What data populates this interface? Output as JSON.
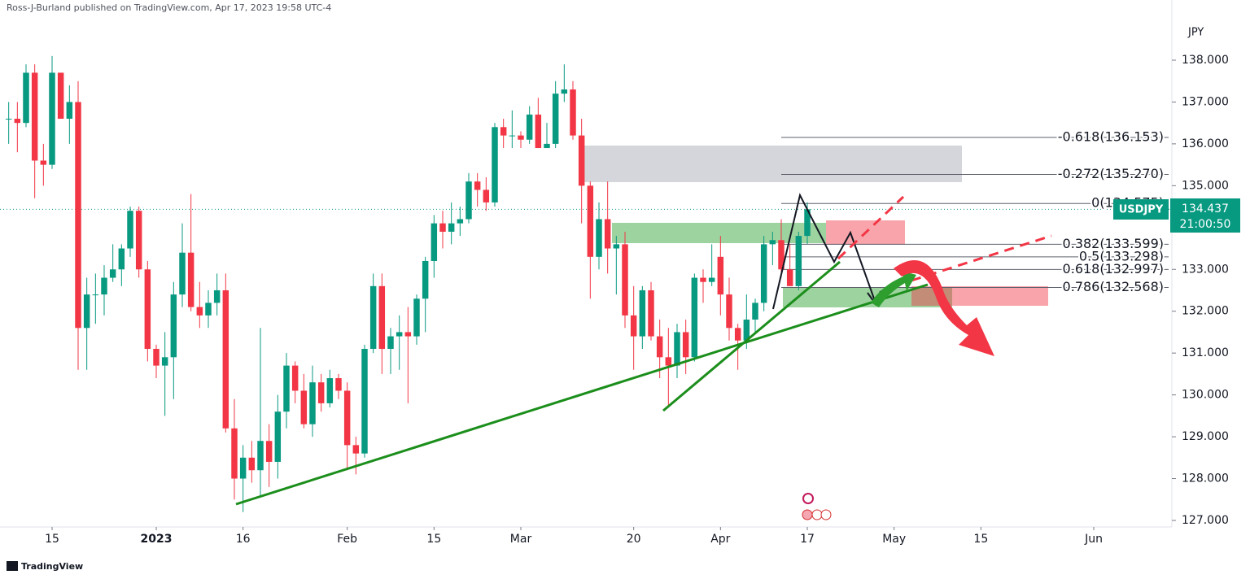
{
  "header": {
    "published": "Ross-J-Burland published on TradingView.com, Apr 17, 2023 19:58 UTC-4"
  },
  "footer": {
    "brand": "TradingView"
  },
  "chart_data": {
    "type": "candlestick",
    "symbol": "USDJPY",
    "axis_label": "JPY",
    "up_color": "#089981",
    "down_color": "#f23645",
    "ylim": [
      126.844,
      139.438
    ],
    "yticks": [
      {
        "value": 127,
        "label": "127.000"
      },
      {
        "value": 128,
        "label": "128.000"
      },
      {
        "value": 129,
        "label": "129.000"
      },
      {
        "value": 130,
        "label": "130.000"
      },
      {
        "value": 131,
        "label": "131.000"
      },
      {
        "value": 132,
        "label": "132.000"
      },
      {
        "value": 133,
        "label": "133.000"
      },
      {
        "value": 134,
        "label": "134.000"
      },
      {
        "value": 135,
        "label": "135.000"
      },
      {
        "value": 136,
        "label": "136.000"
      },
      {
        "value": 137,
        "label": "137.000"
      },
      {
        "value": 138,
        "label": "138.000"
      }
    ],
    "xlim": [
      "2022-12-07",
      "2023-06-14"
    ],
    "xticks": [
      {
        "value": "2022-12-15",
        "label": "15"
      },
      {
        "value": "2023-01-02",
        "label": "2023"
      },
      {
        "value": "2023-01-16",
        "label": "16"
      },
      {
        "value": "2023-02-01",
        "label": "Feb"
      },
      {
        "value": "2023-02-15",
        "label": "15"
      },
      {
        "value": "2023-03-01",
        "label": "Mar"
      },
      {
        "value": "2023-03-20",
        "label": "20"
      },
      {
        "value": "2023-04-03",
        "label": "Apr"
      },
      {
        "value": "2023-04-17",
        "label": "17"
      },
      {
        "value": "2023-05-01",
        "label": "May"
      },
      {
        "value": "2023-05-15",
        "label": "15"
      },
      {
        "value": "2023-06-01",
        "label": "Jun"
      }
    ],
    "last_price": 134.437,
    "countdown": "21:00:50",
    "fib_levels": [
      {
        "value": 136.153,
        "label": "-0.618(136.153)"
      },
      {
        "value": 135.27,
        "label": "-0.272(135.270)"
      },
      {
        "value": 134.575,
        "label": "0(134.575)"
      },
      {
        "value": 133.599,
        "label": "0.382(133.599)"
      },
      {
        "value": 133.298,
        "label": "0.5(133.298)"
      },
      {
        "value": 132.997,
        "label": "0.618(132.997)"
      },
      {
        "value": 132.568,
        "label": "0.786(132.568)"
      }
    ],
    "x": [
      "2022-12-08",
      "2022-12-09",
      "2022-12-12",
      "2022-12-13",
      "2022-12-14",
      "2022-12-15",
      "2022-12-16",
      "2022-12-19",
      "2022-12-20",
      "2022-12-21",
      "2022-12-22",
      "2022-12-23",
      "2022-12-26",
      "2022-12-27",
      "2022-12-28",
      "2022-12-29",
      "2022-12-30",
      "2023-01-02",
      "2023-01-03",
      "2023-01-04",
      "2023-01-05",
      "2023-01-06",
      "2023-01-09",
      "2023-01-10",
      "2023-01-11",
      "2023-01-12",
      "2023-01-13",
      "2023-01-16",
      "2023-01-17",
      "2023-01-18",
      "2023-01-19",
      "2023-01-20",
      "2023-01-23",
      "2023-01-24",
      "2023-01-25",
      "2023-01-26",
      "2023-01-27",
      "2023-01-30",
      "2023-01-31",
      "2023-02-01",
      "2023-02-02",
      "2023-02-03",
      "2023-02-06",
      "2023-02-07",
      "2023-02-08",
      "2023-02-09",
      "2023-02-10",
      "2023-02-13",
      "2023-02-14",
      "2023-02-15",
      "2023-02-16",
      "2023-02-17",
      "2023-02-20",
      "2023-02-21",
      "2023-02-22",
      "2023-02-23",
      "2023-02-24",
      "2023-02-27",
      "2023-02-28",
      "2023-03-01",
      "2023-03-02",
      "2023-03-03",
      "2023-03-06",
      "2023-03-07",
      "2023-03-08",
      "2023-03-09",
      "2023-03-10",
      "2023-03-13",
      "2023-03-14",
      "2023-03-15",
      "2023-03-16",
      "2023-03-17",
      "2023-03-20",
      "2023-03-21",
      "2023-03-22",
      "2023-03-23",
      "2023-03-24",
      "2023-03-27",
      "2023-03-28",
      "2023-03-29",
      "2023-03-30",
      "2023-03-31",
      "2023-04-03",
      "2023-04-04",
      "2023-04-05",
      "2023-04-06",
      "2023-04-07",
      "2023-04-10",
      "2023-04-11",
      "2023-04-12",
      "2023-04-13",
      "2023-04-14",
      "2023-04-17"
    ],
    "values": [
      [
        136.6,
        137.0,
        136.0,
        136.6
      ],
      [
        136.6,
        137.0,
        135.8,
        136.5
      ],
      [
        136.5,
        137.9,
        136.4,
        137.7
      ],
      [
        137.7,
        137.9,
        134.7,
        135.6
      ],
      [
        135.6,
        136.0,
        135.0,
        135.5
      ],
      [
        135.5,
        138.1,
        135.4,
        137.7
      ],
      [
        137.7,
        137.7,
        136.6,
        136.6
      ],
      [
        136.6,
        137.4,
        136.0,
        137.0
      ],
      [
        137.0,
        137.5,
        130.6,
        131.6
      ],
      [
        131.6,
        132.8,
        130.6,
        132.4
      ],
      [
        132.4,
        132.9,
        131.7,
        132.4
      ],
      [
        132.4,
        133.1,
        131.9,
        132.8
      ],
      [
        132.8,
        133.6,
        132.7,
        133.0
      ],
      [
        133.0,
        133.6,
        132.6,
        133.5
      ],
      [
        133.5,
        134.5,
        133.3,
        134.4
      ],
      [
        134.4,
        134.5,
        132.8,
        133.0
      ],
      [
        133.0,
        133.2,
        130.8,
        131.1
      ],
      [
        131.1,
        131.2,
        130.4,
        130.7
      ],
      [
        130.7,
        131.5,
        129.5,
        130.9
      ],
      [
        130.9,
        132.7,
        129.9,
        132.4
      ],
      [
        132.4,
        134.1,
        132.1,
        133.4
      ],
      [
        133.4,
        134.8,
        132.0,
        132.1
      ],
      [
        132.1,
        132.7,
        131.6,
        131.9
      ],
      [
        131.9,
        132.5,
        131.6,
        132.2
      ],
      [
        132.2,
        132.9,
        131.9,
        132.5
      ],
      [
        132.5,
        132.9,
        129.1,
        129.2
      ],
      [
        129.2,
        129.9,
        127.5,
        128.0
      ],
      [
        128.0,
        128.8,
        127.2,
        128.5
      ],
      [
        128.5,
        128.9,
        127.9,
        128.2
      ],
      [
        128.2,
        131.6,
        127.6,
        128.9
      ],
      [
        128.9,
        129.3,
        127.8,
        128.4
      ],
      [
        128.4,
        130.0,
        128.0,
        129.6
      ],
      [
        129.6,
        131.0,
        129.2,
        130.7
      ],
      [
        130.7,
        130.8,
        129.8,
        130.1
      ],
      [
        130.1,
        130.5,
        129.2,
        129.3
      ],
      [
        129.3,
        130.7,
        129.0,
        130.3
      ],
      [
        130.3,
        130.5,
        129.6,
        129.8
      ],
      [
        129.8,
        130.6,
        129.7,
        130.4
      ],
      [
        130.4,
        130.5,
        129.9,
        130.1
      ],
      [
        130.1,
        130.3,
        128.2,
        128.8
      ],
      [
        128.8,
        129.0,
        128.1,
        128.6
      ],
      [
        128.6,
        131.2,
        128.5,
        131.1
      ],
      [
        131.1,
        132.9,
        131.0,
        132.6
      ],
      [
        132.6,
        132.9,
        130.5,
        131.1
      ],
      [
        131.1,
        131.6,
        130.5,
        131.4
      ],
      [
        131.4,
        131.9,
        130.6,
        131.5
      ],
      [
        131.5,
        132.1,
        129.8,
        131.4
      ],
      [
        131.4,
        132.4,
        131.2,
        132.3
      ],
      [
        132.3,
        133.3,
        131.5,
        133.2
      ],
      [
        133.2,
        134.3,
        132.8,
        134.1
      ],
      [
        134.1,
        134.4,
        133.5,
        133.9
      ],
      [
        133.9,
        134.6,
        133.6,
        134.1
      ],
      [
        134.1,
        134.5,
        133.8,
        134.2
      ],
      [
        134.2,
        135.3,
        134.1,
        135.1
      ],
      [
        135.1,
        135.3,
        134.5,
        134.9
      ],
      [
        134.9,
        135.2,
        134.4,
        134.6
      ],
      [
        134.6,
        136.5,
        134.5,
        136.4
      ],
      [
        136.4,
        136.6,
        135.9,
        136.2
      ],
      [
        136.2,
        136.8,
        135.9,
        136.2
      ],
      [
        136.2,
        136.3,
        135.9,
        136.1
      ],
      [
        136.1,
        136.9,
        136.0,
        136.7
      ],
      [
        136.7,
        137.1,
        135.9,
        135.9
      ],
      [
        135.9,
        136.5,
        135.9,
        136.0
      ],
      [
        136.0,
        137.5,
        135.9,
        137.2
      ],
      [
        137.2,
        137.9,
        137.0,
        137.3
      ],
      [
        137.3,
        137.5,
        136.1,
        136.2
      ],
      [
        136.2,
        136.6,
        134.1,
        135.0
      ],
      [
        135.0,
        135.1,
        132.3,
        133.3
      ],
      [
        133.3,
        134.6,
        133.0,
        134.2
      ],
      [
        134.2,
        135.1,
        132.9,
        133.5
      ],
      [
        133.5,
        133.8,
        132.4,
        133.6
      ],
      [
        133.6,
        133.9,
        131.6,
        131.9
      ],
      [
        131.9,
        132.6,
        130.6,
        131.4
      ],
      [
        131.4,
        132.6,
        131.1,
        132.5
      ],
      [
        132.5,
        132.7,
        131.3,
        131.4
      ],
      [
        131.4,
        131.8,
        130.4,
        130.9
      ],
      [
        130.9,
        131.6,
        129.7,
        130.7
      ],
      [
        130.7,
        131.7,
        130.4,
        131.5
      ],
      [
        131.5,
        131.8,
        130.5,
        130.9
      ],
      [
        130.9,
        132.9,
        130.8,
        132.8
      ],
      [
        132.8,
        133.0,
        132.2,
        132.7
      ],
      [
        132.7,
        133.6,
        132.6,
        132.8
      ],
      [
        133.3,
        133.8,
        131.9,
        132.4
      ],
      [
        132.4,
        132.8,
        131.3,
        131.6
      ],
      [
        131.6,
        131.7,
        130.6,
        131.3
      ],
      [
        131.3,
        132.4,
        131.1,
        131.8
      ],
      [
        131.8,
        132.3,
        131.5,
        132.2
      ],
      [
        132.2,
        133.8,
        132.0,
        133.6
      ],
      [
        133.6,
        133.9,
        133.1,
        133.7
      ],
      [
        133.7,
        134.2,
        132.8,
        133.0
      ],
      [
        133.0,
        133.6,
        132.6,
        132.6
      ],
      [
        132.6,
        133.9,
        132.5,
        133.8
      ],
      [
        133.8,
        134.6,
        133.6,
        134.437
      ]
    ]
  }
}
